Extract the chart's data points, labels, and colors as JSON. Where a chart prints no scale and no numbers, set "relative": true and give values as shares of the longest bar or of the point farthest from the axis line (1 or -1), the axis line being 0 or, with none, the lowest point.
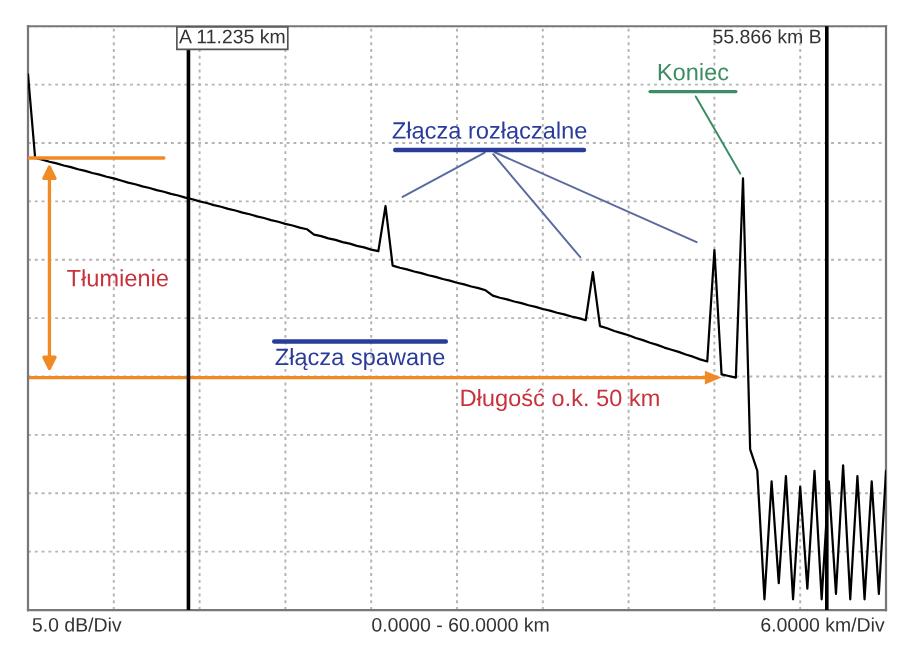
{
  "chart_data": {
    "type": "line",
    "relative": true,
    "grid": true,
    "categories": [
      null,
      null,
      null,
      null,
      null,
      null,
      null,
      null,
      null,
      null,
      null,
      null,
      null,
      null,
      null,
      null,
      null,
      null,
      null,
      null,
      null,
      null,
      null,
      null,
      null,
      null,
      null,
      null,
      null,
      null,
      null,
      null,
      null,
      null,
      null,
      null,
      null,
      null,
      null,
      null,
      null,
      null,
      null,
      null,
      null,
      null,
      null,
      null,
      null,
      null,
      null,
      null,
      null,
      null,
      null,
      null,
      null,
      null,
      null,
      null,
      null,
      null,
      null,
      null,
      null,
      null,
      null,
      null,
      null,
      null,
      null,
      null,
      null,
      null,
      null,
      null,
      null,
      null,
      null,
      null,
      null,
      null,
      null,
      null,
      null,
      null,
      null,
      null,
      null,
      null,
      null,
      null,
      null,
      null,
      null,
      null,
      null,
      null,
      null,
      null,
      null,
      null,
      null,
      null,
      null,
      null,
      null,
      null,
      null,
      null,
      null,
      null,
      null,
      null,
      null,
      null,
      null,
      null,
      null,
      null,
      null
    ],
    "series": [
      {
        "color": "#000000",
        "values": [
          1.0,
          0.844,
          0.841,
          0.837,
          0.834,
          0.83,
          0.827,
          0.823,
          0.82,
          0.816,
          0.813,
          0.809,
          0.806,
          0.802,
          0.798,
          0.795,
          0.791,
          0.788,
          0.784,
          0.781,
          0.777,
          0.774,
          0.77,
          0.767,
          0.763,
          0.76,
          0.756,
          0.753,
          0.749,
          0.746,
          0.742,
          0.739,
          0.735,
          0.732,
          0.728,
          0.725,
          0.721,
          0.718,
          0.714,
          0.711,
          0.701,
          0.698,
          0.694,
          0.691,
          0.687,
          0.684,
          0.68,
          0.677,
          0.673,
          0.67,
          0.754,
          0.643,
          0.639,
          0.636,
          0.632,
          0.629,
          0.625,
          0.622,
          0.618,
          0.615,
          0.611,
          0.608,
          0.604,
          0.601,
          0.597,
          0.587,
          0.583,
          0.58,
          0.576,
          0.573,
          0.569,
          0.566,
          0.562,
          0.559,
          0.555,
          0.552,
          0.548,
          0.545,
          0.541,
          0.631,
          0.53,
          0.526,
          0.521,
          0.517,
          0.513,
          0.508,
          0.504,
          0.499,
          0.495,
          0.49,
          0.486,
          0.482,
          0.477,
          0.473,
          0.468,
          0.464,
          0.672,
          0.44,
          0.437,
          0.434,
          0.806,
          0.3,
          0.26,
          0.02,
          0.24,
          0.05,
          0.25,
          0.02,
          0.23,
          0.04,
          0.26,
          0.02,
          0.24,
          0.03,
          0.27,
          0.02,
          0.25,
          0.02,
          0.24,
          0.03,
          0.26
        ]
      }
    ],
    "annotations": [
      "A 11.235 km",
      "55.866 km B",
      "Tłumienie",
      "Długość o.k. 50 km",
      "Złącza rozłączalne",
      "Złącza spawane",
      "Koniec",
      "5.0 dB/Div",
      "0.0000 - 60.0000 km",
      "6.0000 km/Div"
    ]
  }
}
